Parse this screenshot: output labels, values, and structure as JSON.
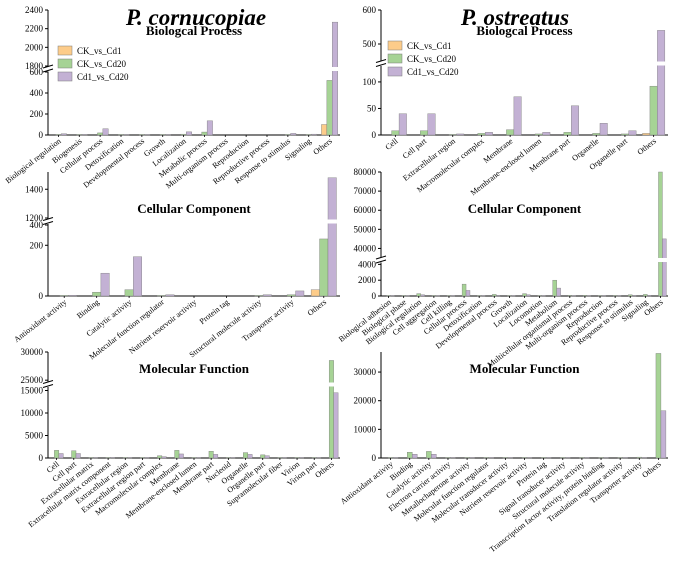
{
  "headers": {
    "left": "P. cornucopiae",
    "right": "P. ostreatus"
  },
  "series_names": [
    "CK_vs_Cd1",
    "CK_vs_Cd20",
    "Cd1_vs_Cd20"
  ],
  "colors": {
    "CK_vs_Cd1": "#fdcc8a",
    "CK_vs_Cd20": "#a6d395",
    "Cd1_vs_Cd20": "#c3b1d4"
  },
  "chart_data": [
    {
      "id": "pc_bp",
      "type": "bar",
      "title": "Biologcal Process",
      "legend": true,
      "axis_break": true,
      "categories": [
        "Biological regulation",
        "Biogenesis",
        "Cellular process",
        "Detoxification",
        "Developmental process",
        "Growth",
        "Localization",
        "Metabolic process",
        "Multi-organism process",
        "Reproduction",
        "Reproductive process",
        "Response to stimulus",
        "Signaling",
        "Others"
      ],
      "series": [
        {
          "name": "CK_vs_Cd1",
          "values": [
            0,
            0,
            0,
            0,
            0,
            0,
            0,
            0,
            0,
            0,
            0,
            0,
            0,
            100
          ]
        },
        {
          "name": "CK_vs_Cd20",
          "values": [
            5,
            3,
            20,
            3,
            3,
            2,
            8,
            28,
            0,
            0,
            0,
            3,
            3,
            520
          ]
        },
        {
          "name": "Cd1_vs_Cd20",
          "values": [
            12,
            6,
            60,
            6,
            5,
            3,
            30,
            135,
            0,
            0,
            0,
            15,
            8,
            2270
          ]
        }
      ],
      "yticks": [
        0,
        200,
        400,
        600,
        1800,
        2000,
        2200,
        2400
      ]
    },
    {
      "id": "po_bp",
      "type": "bar",
      "title": "Biologcal Process",
      "legend": true,
      "axis_break": true,
      "categories": [
        "Cell",
        "Cell part",
        "Extracellular region",
        "Macromolecular complex",
        "Membrane",
        "Membrane-enclosed lumen",
        "Membrane part",
        "Organelle",
        "Organelle part",
        "Others"
      ],
      "series": [
        {
          "name": "CK_vs_Cd1",
          "values": [
            0,
            0,
            0,
            0,
            0,
            0,
            0,
            0,
            0,
            3
          ]
        },
        {
          "name": "CK_vs_Cd20",
          "values": [
            8,
            8,
            1,
            3,
            10,
            2,
            5,
            3,
            2,
            92
          ]
        },
        {
          "name": "Cd1_vs_Cd20",
          "values": [
            40,
            40,
            2,
            5,
            72,
            5,
            55,
            22,
            8,
            540
          ]
        }
      ],
      "yticks": [
        0,
        50,
        100,
        500,
        600
      ]
    },
    {
      "id": "pc_cc",
      "type": "bar",
      "title": "Cellular Component",
      "legend": false,
      "axis_break": true,
      "categories": [
        "Antioxidant activity",
        "Binding",
        "Catalytic activity",
        "Molecular function regulator",
        "Nutrient reservoir activity",
        "Protein tag",
        "Structural molecule activity",
        "Transporter activity",
        "Others"
      ],
      "series": [
        {
          "name": "CK_vs_Cd1",
          "values": [
            0,
            0,
            0,
            0,
            0,
            0,
            0,
            0,
            25
          ]
        },
        {
          "name": "CK_vs_Cd20",
          "values": [
            2,
            15,
            25,
            2,
            0,
            0,
            2,
            5,
            225
          ]
        },
        {
          "name": "Cd1_vs_Cd20",
          "values": [
            3,
            90,
            155,
            5,
            0,
            0,
            5,
            20,
            1480
          ]
        }
      ],
      "yticks": [
        0,
        200,
        400,
        1200,
        1400
      ]
    },
    {
      "id": "po_cc",
      "type": "bar",
      "title": "Cellular Component",
      "legend": false,
      "axis_break": true,
      "categories": [
        "Biological adhesion",
        "Biological phase",
        "Biological regulation",
        "Cell aggregation",
        "Cell killing",
        "Cellular process",
        "Detoxification",
        "Developmental process",
        "Growth",
        "Localization",
        "Locomotion",
        "Metabolism",
        "Multicellular organismal process",
        "Multi-organism process",
        "Reproduction",
        "Reproductive process",
        "Response to stimulus",
        "Signaling",
        "Others"
      ],
      "series": [
        {
          "name": "CK_vs_Cd1",
          "values": [
            0,
            0,
            0,
            0,
            0,
            0,
            0,
            0,
            0,
            0,
            0,
            0,
            0,
            0,
            0,
            0,
            0,
            0,
            0
          ]
        },
        {
          "name": "CK_vs_Cd20",
          "values": [
            50,
            30,
            300,
            20,
            20,
            1500,
            30,
            200,
            50,
            300,
            30,
            2000,
            100,
            100,
            50,
            80,
            150,
            200,
            80000
          ]
        },
        {
          "name": "Cd1_vs_Cd20",
          "values": [
            30,
            20,
            150,
            10,
            10,
            700,
            20,
            100,
            30,
            150,
            20,
            1000,
            50,
            50,
            30,
            50,
            80,
            100,
            45000
          ]
        }
      ],
      "yticks": [
        0,
        2000,
        4000,
        40000,
        50000,
        60000,
        70000,
        80000
      ]
    },
    {
      "id": "pc_mf",
      "type": "bar",
      "title": "Molecular Function",
      "legend": false,
      "axis_break": true,
      "categories": [
        "Cell",
        "Cell part",
        "Extracellular matrix",
        "Extracellular matrix component",
        "Extracellular region",
        "Extracellular region part",
        "Macromolecular complex",
        "Membrane",
        "Membrane-enclosed lumen",
        "Membrane part",
        "Nucleoid",
        "Organelle",
        "Organelle part",
        "Supramolecular fiber",
        "Virion",
        "Virion part",
        "Others"
      ],
      "series": [
        {
          "name": "CK_vs_Cd1",
          "values": [
            0,
            0,
            0,
            0,
            0,
            0,
            0,
            0,
            0,
            0,
            0,
            0,
            0,
            0,
            0,
            0,
            0
          ]
        },
        {
          "name": "CK_vs_Cd20",
          "values": [
            1700,
            1600,
            50,
            20,
            100,
            50,
            500,
            1700,
            100,
            1500,
            20,
            1200,
            700,
            30,
            20,
            30,
            28500
          ]
        },
        {
          "name": "Cd1_vs_Cd20",
          "values": [
            1000,
            1000,
            30,
            10,
            60,
            30,
            300,
            900,
            60,
            800,
            10,
            800,
            500,
            20,
            10,
            20,
            14500
          ]
        }
      ],
      "yticks": [
        0,
        5000,
        10000,
        15000,
        25000,
        30000
      ]
    },
    {
      "id": "po_mf",
      "type": "bar",
      "title": "Molecular Function",
      "legend": false,
      "axis_break": true,
      "categories": [
        "Antioxidant activity",
        "Binding",
        "Catalytic activity",
        "Electron carrier activity",
        "Metallochaperone activity",
        "Molecular function regulator",
        "Molecular transducer activity",
        "Nutrient reservoir activity",
        "Protein tag",
        "Signal transducer activity",
        "Structural molecule activity",
        "Transcription factor activity, protein binding",
        "Translation regulator activity",
        "Transporter activity",
        "Others"
      ],
      "series": [
        {
          "name": "CK_vs_Cd1",
          "values": [
            0,
            0,
            0,
            0,
            0,
            0,
            0,
            0,
            0,
            0,
            0,
            0,
            0,
            0,
            0
          ]
        },
        {
          "name": "CK_vs_Cd20",
          "values": [
            50,
            2000,
            2300,
            50,
            20,
            100,
            50,
            20,
            20,
            50,
            50,
            50,
            50,
            300,
            36500
          ]
        },
        {
          "name": "Cd1_vs_Cd20",
          "values": [
            30,
            1300,
            1300,
            30,
            10,
            60,
            30,
            10,
            10,
            30,
            30,
            30,
            30,
            200,
            16500
          ]
        }
      ],
      "yticks": [
        0,
        10000,
        20000,
        30000
      ]
    }
  ]
}
